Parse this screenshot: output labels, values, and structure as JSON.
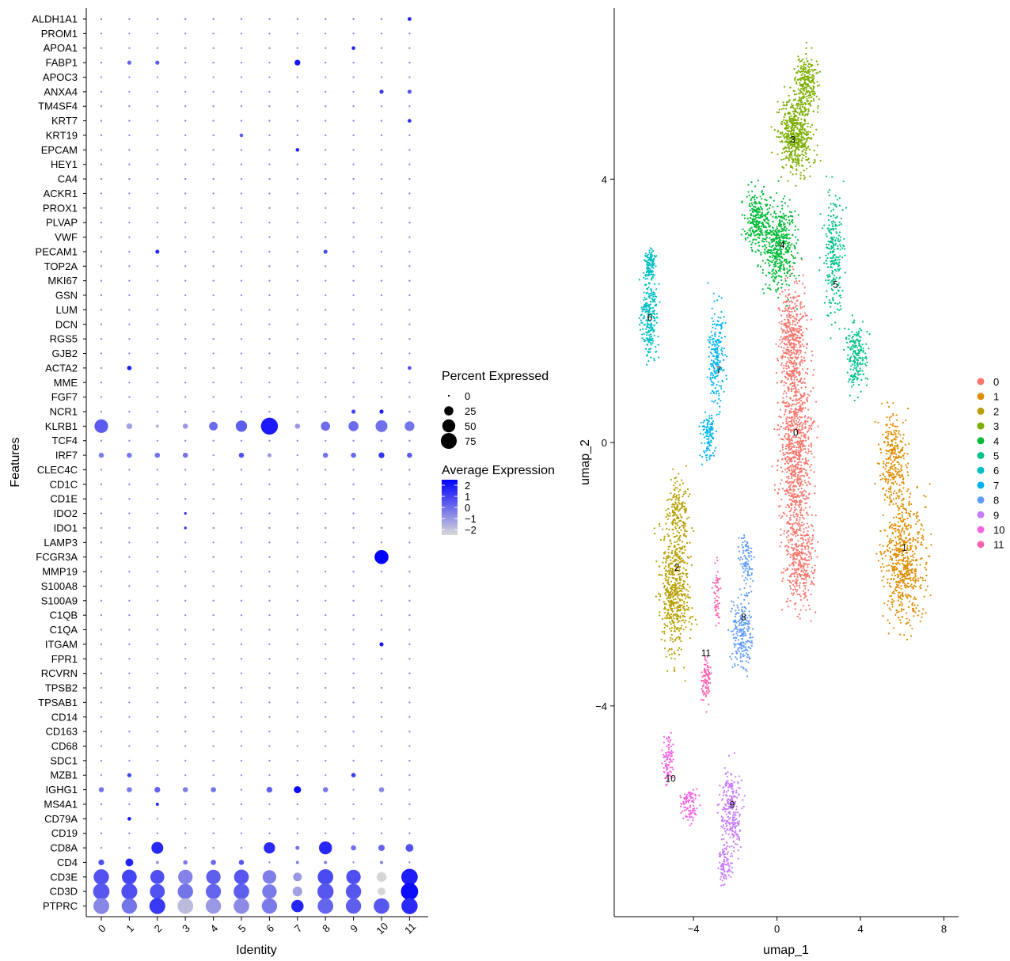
{
  "chart_data": [
    {
      "type": "dotplot",
      "xlabel": "Identity",
      "ylabel": "Features",
      "identities": [
        "0",
        "1",
        "2",
        "3",
        "4",
        "5",
        "6",
        "7",
        "8",
        "9",
        "10",
        "11"
      ],
      "features": [
        "ALDH1A1",
        "PROM1",
        "APOA1",
        "FABP1",
        "APOC3",
        "ANXA4",
        "TM4SF4",
        "KRT7",
        "KRT19",
        "EPCAM",
        "HEY1",
        "CA4",
        "ACKR1",
        "PROX1",
        "PLVAP",
        "VWF",
        "PECAM1",
        "TOP2A",
        "MKI67",
        "GSN",
        "LUM",
        "DCN",
        "RGS5",
        "GJB2",
        "ACTA2",
        "MME",
        "FGF7",
        "NCR1",
        "KLRB1",
        "TCF4",
        "IRF7",
        "CLEC4C",
        "CD1C",
        "CD1E",
        "IDO2",
        "IDO1",
        "LAMP3",
        "FCGR3A",
        "MMP19",
        "S100A8",
        "S100A9",
        "C1QB",
        "C1QA",
        "ITGAM",
        "FPR1",
        "RCVRN",
        "TPSB2",
        "TPSAB1",
        "CD14",
        "CD163",
        "CD68",
        "SDC1",
        "MZB1",
        "IGHG1",
        "MS4A1",
        "CD79A",
        "CD19",
        "CD8A",
        "CD4",
        "CD3E",
        "CD3D",
        "PTPRC"
      ],
      "default_pct": 1,
      "default_expr": -0.6,
      "dots": [
        {
          "f": "ALDH1A1",
          "c": "11",
          "pct": 4,
          "expr": 1.8
        },
        {
          "f": "APOA1",
          "c": "9",
          "pct": 4,
          "expr": 1.6
        },
        {
          "f": "FABP1",
          "c": "1",
          "pct": 5,
          "expr": 0.2
        },
        {
          "f": "FABP1",
          "c": "2",
          "pct": 5,
          "expr": 0.3
        },
        {
          "f": "FABP1",
          "c": "7",
          "pct": 10,
          "expr": 2.0
        },
        {
          "f": "ANXA4",
          "c": "10",
          "pct": 5,
          "expr": 1.2
        },
        {
          "f": "ANXA4",
          "c": "11",
          "pct": 5,
          "expr": 0.5
        },
        {
          "f": "KRT7",
          "c": "11",
          "pct": 4,
          "expr": 1.5
        },
        {
          "f": "KRT19",
          "c": "5",
          "pct": 4,
          "expr": 0.3
        },
        {
          "f": "EPCAM",
          "c": "7",
          "pct": 4,
          "expr": 1.6
        },
        {
          "f": "PECAM1",
          "c": "2",
          "pct": 5,
          "expr": 1.5
        },
        {
          "f": "PECAM1",
          "c": "8",
          "pct": 5,
          "expr": 0.8
        },
        {
          "f": "ACTA2",
          "c": "1",
          "pct": 6,
          "expr": 1.8
        },
        {
          "f": "ACTA2",
          "c": "11",
          "pct": 4,
          "expr": 0.8
        },
        {
          "f": "NCR1",
          "c": "9",
          "pct": 5,
          "expr": 1.0
        },
        {
          "f": "NCR1",
          "c": "10",
          "pct": 5,
          "expr": 1.8
        },
        {
          "f": "KLRB1",
          "c": "0",
          "pct": 55,
          "expr": 0.4
        },
        {
          "f": "KLRB1",
          "c": "1",
          "pct": 10,
          "expr": -1.2
        },
        {
          "f": "KLRB1",
          "c": "2",
          "pct": 3,
          "expr": -1.6
        },
        {
          "f": "KLRB1",
          "c": "3",
          "pct": 8,
          "expr": -1.0
        },
        {
          "f": "KLRB1",
          "c": "4",
          "pct": 22,
          "expr": 0.0
        },
        {
          "f": "KLRB1",
          "c": "5",
          "pct": 38,
          "expr": 0.3
        },
        {
          "f": "KLRB1",
          "c": "6",
          "pct": 85,
          "expr": 1.9
        },
        {
          "f": "KLRB1",
          "c": "7",
          "pct": 8,
          "expr": -1.0
        },
        {
          "f": "KLRB1",
          "c": "8",
          "pct": 25,
          "expr": 0.0
        },
        {
          "f": "KLRB1",
          "c": "9",
          "pct": 30,
          "expr": 0.0
        },
        {
          "f": "KLRB1",
          "c": "10",
          "pct": 42,
          "expr": -0.1
        },
        {
          "f": "KLRB1",
          "c": "11",
          "pct": 28,
          "expr": -0.2
        },
        {
          "f": "IRF7",
          "c": "0",
          "pct": 8,
          "expr": -0.4
        },
        {
          "f": "IRF7",
          "c": "1",
          "pct": 8,
          "expr": -0.3
        },
        {
          "f": "IRF7",
          "c": "2",
          "pct": 8,
          "expr": -0.1
        },
        {
          "f": "IRF7",
          "c": "3",
          "pct": 8,
          "expr": -0.2
        },
        {
          "f": "IRF7",
          "c": "5",
          "pct": 8,
          "expr": 0.6
        },
        {
          "f": "IRF7",
          "c": "6",
          "pct": 5,
          "expr": -1.0
        },
        {
          "f": "IRF7",
          "c": "8",
          "pct": 8,
          "expr": -0.2
        },
        {
          "f": "IRF7",
          "c": "9",
          "pct": 8,
          "expr": 0.1
        },
        {
          "f": "IRF7",
          "c": "10",
          "pct": 10,
          "expr": 1.3
        },
        {
          "f": "IRF7",
          "c": "11",
          "pct": 8,
          "expr": 0.4
        },
        {
          "f": "IDO2",
          "c": "3",
          "pct": 2,
          "expr": 1.5
        },
        {
          "f": "IDO1",
          "c": "3",
          "pct": 2,
          "expr": 1.5
        },
        {
          "f": "FCGR3A",
          "c": "10",
          "pct": 58,
          "expr": 2.5
        },
        {
          "f": "ITGAM",
          "c": "10",
          "pct": 5,
          "expr": 2.0
        },
        {
          "f": "MZB1",
          "c": "1",
          "pct": 5,
          "expr": 1.0
        },
        {
          "f": "MZB1",
          "c": "9",
          "pct": 6,
          "expr": 1.0
        },
        {
          "f": "IGHG1",
          "c": "0",
          "pct": 8,
          "expr": -0.2
        },
        {
          "f": "IGHG1",
          "c": "1",
          "pct": 8,
          "expr": -0.3
        },
        {
          "f": "IGHG1",
          "c": "2",
          "pct": 10,
          "expr": 0.2
        },
        {
          "f": "IGHG1",
          "c": "3",
          "pct": 8,
          "expr": -0.4
        },
        {
          "f": "IGHG1",
          "c": "4",
          "pct": 8,
          "expr": -0.1
        },
        {
          "f": "IGHG1",
          "c": "6",
          "pct": 10,
          "expr": 0.3
        },
        {
          "f": "IGHG1",
          "c": "7",
          "pct": 15,
          "expr": 2.3
        },
        {
          "f": "IGHG1",
          "c": "8",
          "pct": 8,
          "expr": -0.3
        },
        {
          "f": "IGHG1",
          "c": "10",
          "pct": 8,
          "expr": -0.6
        },
        {
          "f": "MS4A1",
          "c": "2",
          "pct": 3,
          "expr": 1.5
        },
        {
          "f": "CD79A",
          "c": "1",
          "pct": 4,
          "expr": 2.0
        },
        {
          "f": "CD8A",
          "c": "2",
          "pct": 42,
          "expr": 1.6
        },
        {
          "f": "CD8A",
          "c": "6",
          "pct": 38,
          "expr": 1.5
        },
        {
          "f": "CD8A",
          "c": "7",
          "pct": 5,
          "expr": -0.2
        },
        {
          "f": "CD8A",
          "c": "8",
          "pct": 50,
          "expr": 1.6
        },
        {
          "f": "CD8A",
          "c": "9",
          "pct": 8,
          "expr": -0.1
        },
        {
          "f": "CD8A",
          "c": "10",
          "pct": 12,
          "expr": 0.2
        },
        {
          "f": "CD8A",
          "c": "11",
          "pct": 18,
          "expr": 0.6
        },
        {
          "f": "CD4",
          "c": "0",
          "pct": 10,
          "expr": 0.6
        },
        {
          "f": "CD4",
          "c": "1",
          "pct": 18,
          "expr": 1.7
        },
        {
          "f": "CD4",
          "c": "2",
          "pct": 3,
          "expr": -1.0
        },
        {
          "f": "CD4",
          "c": "3",
          "pct": 6,
          "expr": -0.3
        },
        {
          "f": "CD4",
          "c": "4",
          "pct": 8,
          "expr": 0.1
        },
        {
          "f": "CD4",
          "c": "5",
          "pct": 8,
          "expr": 0.5
        },
        {
          "f": "CD4",
          "c": "7",
          "pct": 3,
          "expr": -0.5
        },
        {
          "f": "CD4",
          "c": "8",
          "pct": 3,
          "expr": -0.5
        },
        {
          "f": "CD4",
          "c": "10",
          "pct": 3,
          "expr": -0.5
        },
        {
          "f": "CD3E",
          "c": "0",
          "pct": 70,
          "expr": 0.6
        },
        {
          "f": "CD3E",
          "c": "1",
          "pct": 65,
          "expr": 0.9
        },
        {
          "f": "CD3E",
          "c": "2",
          "pct": 58,
          "expr": 0.7
        },
        {
          "f": "CD3E",
          "c": "3",
          "pct": 62,
          "expr": -0.5
        },
        {
          "f": "CD3E",
          "c": "4",
          "pct": 62,
          "expr": 0.3
        },
        {
          "f": "CD3E",
          "c": "5",
          "pct": 65,
          "expr": 0.5
        },
        {
          "f": "CD3E",
          "c": "6",
          "pct": 55,
          "expr": -0.4
        },
        {
          "f": "CD3E",
          "c": "7",
          "pct": 22,
          "expr": -1.0
        },
        {
          "f": "CD3E",
          "c": "8",
          "pct": 72,
          "expr": 0.8
        },
        {
          "f": "CD3E",
          "c": "9",
          "pct": 62,
          "expr": 0.7
        },
        {
          "f": "CD3E",
          "c": "10",
          "pct": 28,
          "expr": -2.4
        },
        {
          "f": "CD3E",
          "c": "11",
          "pct": 80,
          "expr": 1.8
        },
        {
          "f": "CD3D",
          "c": "0",
          "pct": 80,
          "expr": 0.5
        },
        {
          "f": "CD3D",
          "c": "1",
          "pct": 75,
          "expr": 0.7
        },
        {
          "f": "CD3D",
          "c": "2",
          "pct": 66,
          "expr": 0.6
        },
        {
          "f": "CD3D",
          "c": "3",
          "pct": 70,
          "expr": -0.2
        },
        {
          "f": "CD3D",
          "c": "4",
          "pct": 68,
          "expr": 0.2
        },
        {
          "f": "CD3D",
          "c": "5",
          "pct": 72,
          "expr": 0.3
        },
        {
          "f": "CD3D",
          "c": "6",
          "pct": 62,
          "expr": -0.3
        },
        {
          "f": "CD3D",
          "c": "7",
          "pct": 28,
          "expr": -1.2
        },
        {
          "f": "CD3D",
          "c": "8",
          "pct": 78,
          "expr": 0.5
        },
        {
          "f": "CD3D",
          "c": "9",
          "pct": 70,
          "expr": 0.5
        },
        {
          "f": "CD3D",
          "c": "10",
          "pct": 18,
          "expr": -2.4
        },
        {
          "f": "CD3D",
          "c": "11",
          "pct": 88,
          "expr": 2.2
        },
        {
          "f": "PTPRC",
          "c": "0",
          "pct": 75,
          "expr": -0.6
        },
        {
          "f": "PTPRC",
          "c": "1",
          "pct": 70,
          "expr": -0.2
        },
        {
          "f": "PTPRC",
          "c": "2",
          "pct": 75,
          "expr": 1.2
        },
        {
          "f": "PTPRC",
          "c": "3",
          "pct": 72,
          "expr": -1.8
        },
        {
          "f": "PTPRC",
          "c": "4",
          "pct": 70,
          "expr": -1.0
        },
        {
          "f": "PTPRC",
          "c": "5",
          "pct": 72,
          "expr": -0.7
        },
        {
          "f": "PTPRC",
          "c": "6",
          "pct": 70,
          "expr": -0.3
        },
        {
          "f": "PTPRC",
          "c": "7",
          "pct": 45,
          "expr": 1.6
        },
        {
          "f": "PTPRC",
          "c": "8",
          "pct": 72,
          "expr": 0.2
        },
        {
          "f": "PTPRC",
          "c": "9",
          "pct": 70,
          "expr": 0.3
        },
        {
          "f": "PTPRC",
          "c": "10",
          "pct": 72,
          "expr": 0.5
        },
        {
          "f": "PTPRC",
          "c": "11",
          "pct": 78,
          "expr": 1.5
        }
      ],
      "size_legend": {
        "title": "Percent Expressed",
        "values": [
          0,
          25,
          50,
          75
        ],
        "labels": [
          "0",
          "25",
          "50",
          "75"
        ]
      },
      "color_legend": {
        "title": "Average Expression",
        "range": [
          -2.5,
          2.5
        ],
        "ticks": [
          2,
          1,
          0,
          -1,
          -2
        ],
        "tick_labels": [
          "2",
          "1",
          "0",
          "−1",
          "−2"
        ],
        "low_color": "#d9d9d9",
        "high_color": "#0000ff"
      }
    },
    {
      "type": "scatter",
      "xlabel": "umap_1",
      "ylabel": "umap_2",
      "xlim": [
        -7.8,
        8.7
      ],
      "ylim": [
        -7.2,
        6.6
      ],
      "x_ticks": [
        -4,
        0,
        4,
        8
      ],
      "x_tick_labels": [
        "−4",
        "0",
        "4",
        "8"
      ],
      "y_ticks": [
        4,
        0,
        -4
      ],
      "y_tick_labels": [
        "4",
        "0",
        "−4"
      ],
      "clusters": [
        {
          "name": "0",
          "color": "#F8766D",
          "n": 1600,
          "label_at": [
            0.9,
            0.15
          ],
          "blobs": [
            [
              0.9,
              -0.2,
              0.7,
              1.6,
              0.6
            ],
            [
              0.7,
              1.6,
              0.6,
              0.8,
              0.25
            ],
            [
              1.2,
              -1.9,
              0.6,
              0.6,
              0.15
            ]
          ]
        },
        {
          "name": "1",
          "color": "#DE8C00",
          "n": 900,
          "label_at": [
            6.1,
            -1.6
          ],
          "blobs": [
            [
              6.1,
              -1.8,
              0.9,
              0.9,
              0.7
            ],
            [
              5.6,
              -0.2,
              0.6,
              0.6,
              0.3
            ]
          ]
        },
        {
          "name": "2",
          "color": "#B79F00",
          "n": 700,
          "label_at": [
            -4.8,
            -1.9
          ],
          "blobs": [
            [
              -4.9,
              -2.2,
              0.65,
              0.9,
              0.75
            ],
            [
              -4.7,
              -1.0,
              0.45,
              0.5,
              0.25
            ]
          ]
        },
        {
          "name": "3",
          "color": "#7CAE00",
          "n": 800,
          "label_at": [
            0.75,
            4.6
          ],
          "blobs": [
            [
              0.9,
              4.7,
              0.75,
              0.55,
              0.75
            ],
            [
              1.4,
              5.5,
              0.5,
              0.35,
              0.25
            ]
          ]
        },
        {
          "name": "4",
          "color": "#00BA38",
          "n": 700,
          "label_at": [
            0.25,
            3.0
          ],
          "blobs": [
            [
              0.1,
              3.0,
              0.75,
              0.6,
              0.7
            ],
            [
              -1.0,
              3.4,
              0.5,
              0.4,
              0.3
            ]
          ]
        },
        {
          "name": "5",
          "color": "#00C08B",
          "n": 450,
          "label_at": [
            2.8,
            2.4
          ],
          "blobs": [
            [
              2.7,
              2.8,
              0.45,
              0.8,
              0.55
            ],
            [
              3.8,
              1.3,
              0.45,
              0.45,
              0.45
            ]
          ]
        },
        {
          "name": "6",
          "color": "#00BFC4",
          "n": 350,
          "label_at": [
            -6.1,
            1.9
          ],
          "blobs": [
            [
              -6.1,
              1.9,
              0.35,
              0.6,
              0.7
            ],
            [
              -6.1,
              2.7,
              0.25,
              0.25,
              0.3
            ]
          ]
        },
        {
          "name": "7",
          "color": "#00B4F0",
          "n": 320,
          "label_at": [
            -2.8,
            1.1
          ],
          "blobs": [
            [
              -2.9,
              1.3,
              0.35,
              0.7,
              0.65
            ],
            [
              -3.3,
              0.1,
              0.3,
              0.35,
              0.35
            ]
          ]
        },
        {
          "name": "8",
          "color": "#619CFF",
          "n": 320,
          "label_at": [
            -1.6,
            -2.65
          ],
          "blobs": [
            [
              -1.7,
              -2.9,
              0.45,
              0.5,
              0.7
            ],
            [
              -1.5,
              -1.8,
              0.3,
              0.35,
              0.3
            ]
          ]
        },
        {
          "name": "9",
          "color": "#C77CFF",
          "n": 350,
          "label_at": [
            -2.15,
            -5.5
          ],
          "blobs": [
            [
              -2.2,
              -5.6,
              0.45,
              0.6,
              0.7
            ],
            [
              -2.5,
              -6.4,
              0.25,
              0.3,
              0.3
            ]
          ]
        },
        {
          "name": "10",
          "color": "#F564E3",
          "n": 200,
          "label_at": [
            -5.1,
            -5.1
          ],
          "blobs": [
            [
              -5.2,
              -4.8,
              0.2,
              0.35,
              0.5
            ],
            [
              -4.2,
              -5.5,
              0.35,
              0.25,
              0.5
            ]
          ]
        },
        {
          "name": "11",
          "color": "#FF64B0",
          "n": 150,
          "label_at": [
            -3.4,
            -3.2
          ],
          "blobs": [
            [
              -3.4,
              -3.6,
              0.2,
              0.3,
              0.6
            ],
            [
              -2.9,
              -2.3,
              0.15,
              0.4,
              0.4
            ]
          ]
        }
      ],
      "legend": [
        "0",
        "1",
        "2",
        "3",
        "4",
        "5",
        "6",
        "7",
        "8",
        "9",
        "10",
        "11"
      ]
    }
  ]
}
